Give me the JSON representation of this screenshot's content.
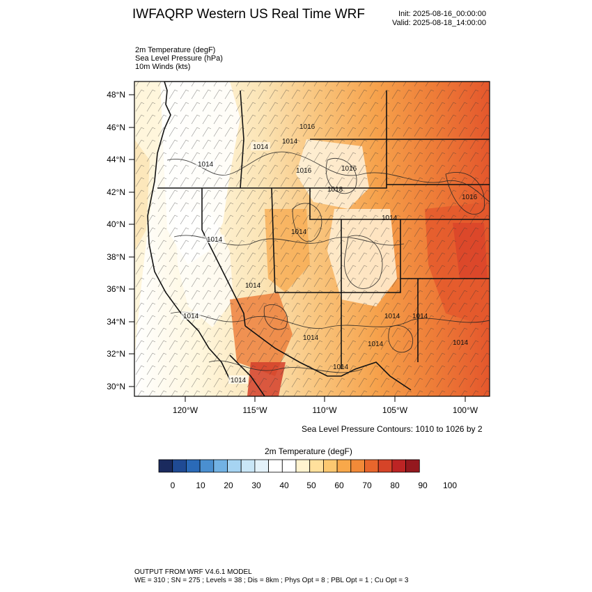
{
  "header": {
    "title": "IWFAQRP Western US Real Time WRF",
    "init": "Init: 2025-08-16_00:00:00",
    "valid": "Valid: 2025-08-18_14:00:00"
  },
  "variables": [
    "2m Temperature   (degF)",
    "Sea Level Pressure   (hPa)",
    "10m Winds   (kts)"
  ],
  "lat_labels": [
    "48°N",
    "46°N",
    "44°N",
    "42°N",
    "40°N",
    "38°N",
    "36°N",
    "34°N",
    "32°N",
    "30°N"
  ],
  "lon_labels": [
    "120°W",
    "115°W",
    "110°W",
    "105°W",
    "100°W"
  ],
  "isobar_labels": [
    "1014",
    "1014",
    "1014",
    "1016",
    "1016",
    "1018",
    "1016",
    "1014",
    "1014",
    "1014",
    "1014",
    "1014",
    "1014",
    "1014",
    "1016",
    "1014",
    "1014",
    "1014",
    "1014",
    "1014"
  ],
  "contour_note": "Sea Level Pressure Contours: 1010 to 1026 by 2",
  "colorbar": {
    "title": "2m Temperature  (degF)",
    "colors": [
      "#1a2a5e",
      "#1f4a94",
      "#2a6ab8",
      "#4a8fd0",
      "#72b2e4",
      "#a6d4f2",
      "#c9e6f7",
      "#e4f2fa",
      "#ffffff",
      "#ffffff",
      "#fff3cf",
      "#ffe09c",
      "#fcc870",
      "#f8a84a",
      "#f28a38",
      "#e8662c",
      "#d64428",
      "#bd2424",
      "#94181e"
    ],
    "tick_labels": [
      "0",
      "10",
      "20",
      "30",
      "40",
      "50",
      "60",
      "70",
      "80",
      "90",
      "100"
    ]
  },
  "footer": {
    "line1": "OUTPUT FROM WRF V4.6.1 MODEL",
    "line2": "WE = 310 ; SN = 275 ; Levels = 38 ; Dis = 8km ; Phys Opt = 8 ; PBL Opt = 1 ; Cu Opt = 3"
  }
}
